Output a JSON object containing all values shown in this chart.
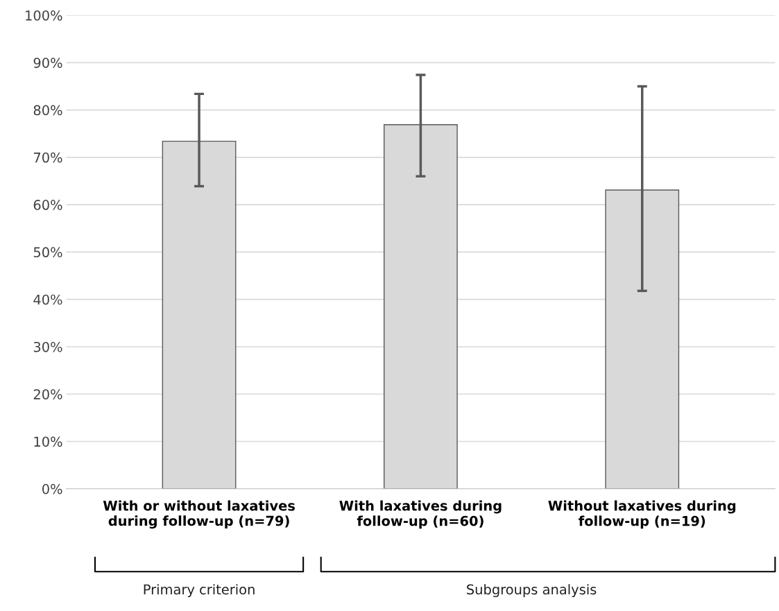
{
  "chart_data": {
    "type": "bar",
    "categories": [
      "With or without laxatives\nduring follow-up (n=79)",
      "With laxatives during\nfollow-up (n=60)",
      "Without laxatives during\nfollow-up (n=19)"
    ],
    "values": [
      73.4,
      76.9,
      63.1
    ],
    "errors": [
      [
        63.9,
        83.4
      ],
      [
        66.0,
        87.4
      ],
      [
        41.8,
        85.0
      ]
    ],
    "color": "#d9d9d9",
    "ylim": [
      0,
      100
    ],
    "yticks": [
      {
        "value": 0,
        "label": "0%"
      },
      {
        "value": 10,
        "label": "10%"
      },
      {
        "value": 20,
        "label": "20%"
      },
      {
        "value": 30,
        "label": "30%"
      },
      {
        "value": 40,
        "label": "40%"
      },
      {
        "value": 50,
        "label": "50%"
      },
      {
        "value": 60,
        "label": "60%"
      },
      {
        "value": 70,
        "label": "70%"
      },
      {
        "value": 80,
        "label": "80%"
      },
      {
        "value": 90,
        "label": "90%"
      },
      {
        "value": 100,
        "label": "100%"
      }
    ],
    "grid": "y",
    "annotations": [
      "Primary criterion",
      "Subgroups analysis"
    ]
  }
}
